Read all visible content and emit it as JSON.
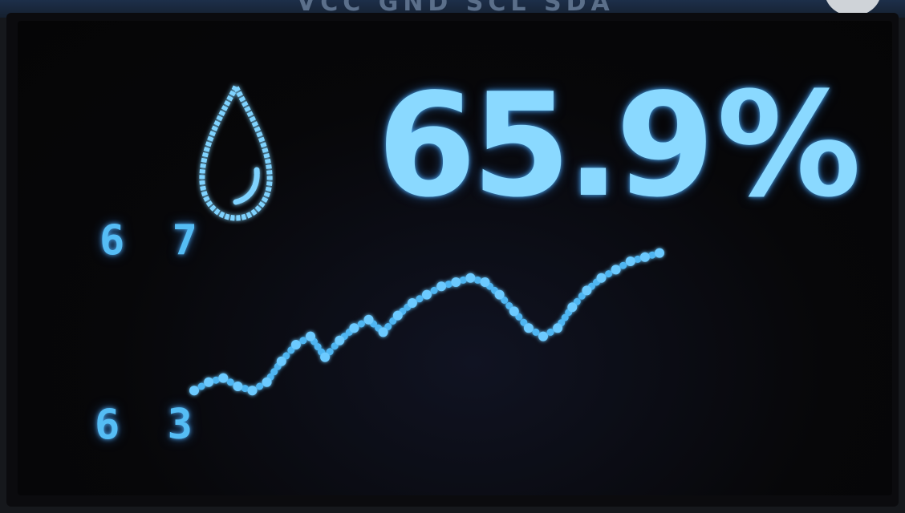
{
  "board": {
    "pin_labels": "VCC GND SCL SDA"
  },
  "display": {
    "icon": "water-drop-icon",
    "humidity_value": "65.9",
    "humidity_unit": "%",
    "colors": {
      "text": "#8ad9ff",
      "graph": "#4fb6f2",
      "axis": "#3aa6ee",
      "background": "#07070a"
    }
  },
  "chart_data": {
    "type": "line",
    "title": "",
    "xlabel": "",
    "ylabel": "",
    "ylim": [
      63,
      67
    ],
    "y_tick_labels": [
      "6 7",
      "6 3"
    ],
    "series": [
      {
        "name": "humidity",
        "values": [
          63.4,
          63.6,
          63.7,
          63.5,
          63.4,
          63.6,
          64.1,
          64.5,
          64.7,
          64.2,
          64.6,
          64.9,
          65.1,
          64.8,
          65.2,
          65.5,
          65.7,
          65.9,
          66.0,
          66.1,
          66.0,
          65.7,
          65.3,
          64.9,
          64.7,
          64.9,
          65.4,
          65.8,
          66.1,
          66.3,
          66.5,
          66.6,
          66.7
        ]
      }
    ]
  }
}
